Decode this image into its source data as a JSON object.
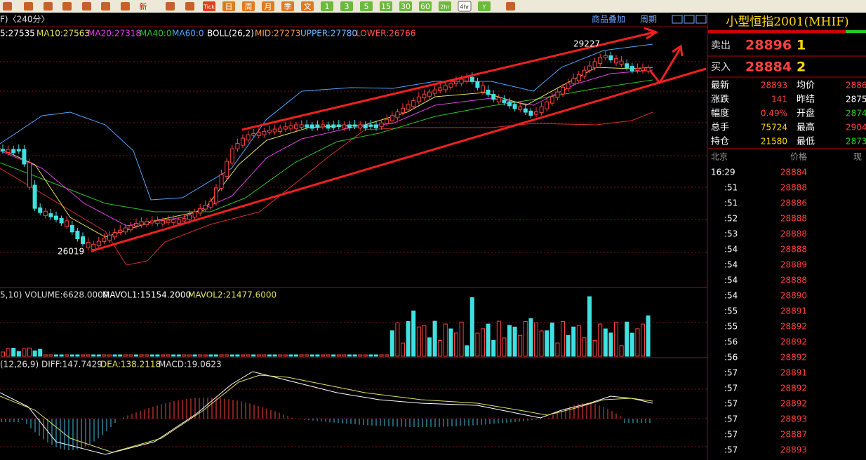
{
  "toolbar": {
    "items": [
      "新",
      "Tick",
      "日",
      "周",
      "月",
      "季",
      "文",
      "1",
      "3",
      "5",
      "15",
      "30",
      "60",
      "2hr",
      "4hr",
      "Y"
    ]
  },
  "chart": {
    "period": "F)〈240分〉",
    "links": [
      "商品叠加",
      "周期"
    ],
    "indicators": [
      "5:27535",
      "MA10:27563",
      "MA20:27318",
      "MA40:0",
      "MA60:0",
      "BOLL(26,2)",
      "MID:27273",
      "UPPER:27780",
      "LOWER:26766"
    ],
    "annotations": {
      "high": "29227",
      "low": "26019"
    },
    "volume_indicators": [
      "5,10) VOLUME:6628.0000",
      "MAVOL1:15154.2000",
      "MAVOL2:21477.6000"
    ],
    "macd_indicators": [
      "(12,26,9) DIFF:147.7429",
      "DEA:138.2118",
      "MACD:19.0623"
    ]
  },
  "quote": {
    "title": "小型恒指2001(MHIF)",
    "sell": {
      "label": "卖出",
      "price": "28896",
      "qty": "1"
    },
    "buy": {
      "label": "买入",
      "price": "28884",
      "qty": "2"
    },
    "stats": [
      [
        "最新",
        "28893",
        "均价",
        "2886"
      ],
      [
        "涨跌",
        "141",
        "昨结",
        "2875"
      ],
      [
        "幅度",
        "0.49%",
        "开盘",
        "2874"
      ],
      [
        "总手",
        "75724",
        "最高",
        "2904"
      ],
      [
        "持仓",
        "21580",
        "最低",
        "2873"
      ]
    ],
    "ticks_header": [
      "北京",
      "价格",
      "现"
    ],
    "ticks": [
      [
        "16:29",
        "28884"
      ],
      [
        ":51",
        "28888"
      ],
      [
        ":51",
        "28886"
      ],
      [
        ":52",
        "28888"
      ],
      [
        ":53",
        "28888"
      ],
      [
        ":54",
        "28888"
      ],
      [
        ":54",
        "28889"
      ],
      [
        ":54",
        "28888"
      ],
      [
        ":54",
        "28890"
      ],
      [
        ":55",
        "28891"
      ],
      [
        ":55",
        "28892"
      ],
      [
        ":56",
        "28892"
      ],
      [
        ":56",
        "28892"
      ],
      [
        ":57",
        "28891"
      ],
      [
        ":57",
        "28892"
      ],
      [
        ":57",
        "28892"
      ],
      [
        ":57",
        "28893"
      ],
      [
        ":57",
        "28887"
      ],
      [
        ":57",
        "28893"
      ]
    ]
  }
}
